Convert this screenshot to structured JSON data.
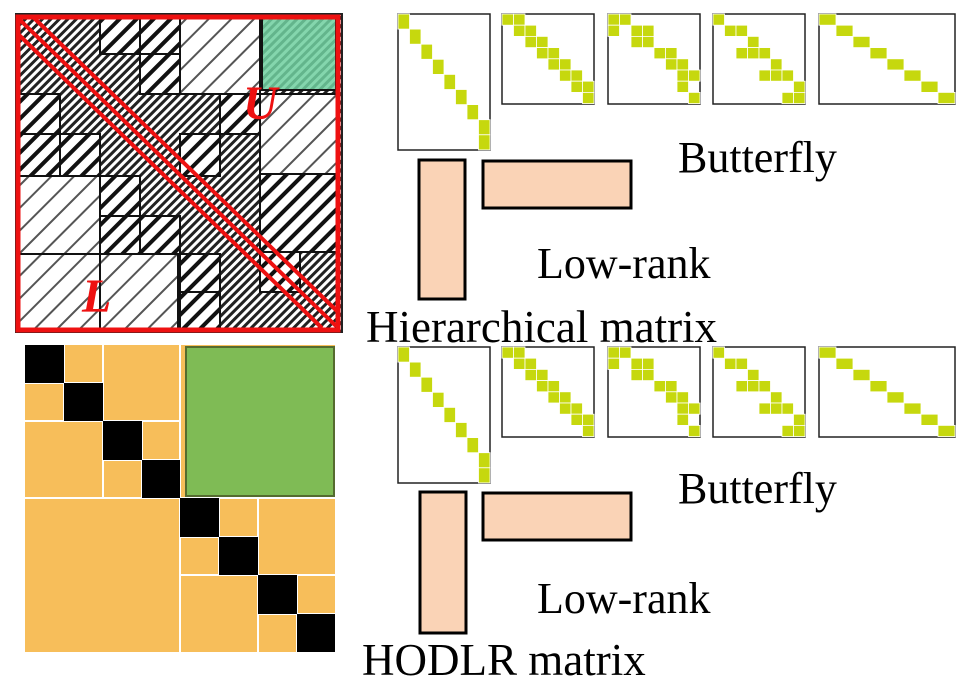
{
  "top_panel": {
    "title": "Hierarchical matrix",
    "lower_label": "L",
    "upper_label": "U",
    "butterfly_label": "Butterfly",
    "lowrank_label": "Low-rank"
  },
  "bottom_panel": {
    "title": "HODLR matrix",
    "butterfly_label": "Butterfly",
    "lowrank_label": "Low-rank"
  },
  "colors": {
    "lu_outline": "#ee1111",
    "hodlr_block": "#f7be5a",
    "hodlr_diag": "#000000",
    "highlight_green": "#7fbb55",
    "highlight_teal": "#6fcf9f",
    "butterfly_cell": "#c6d80e",
    "lowrank_fill": "#fad3b6"
  }
}
